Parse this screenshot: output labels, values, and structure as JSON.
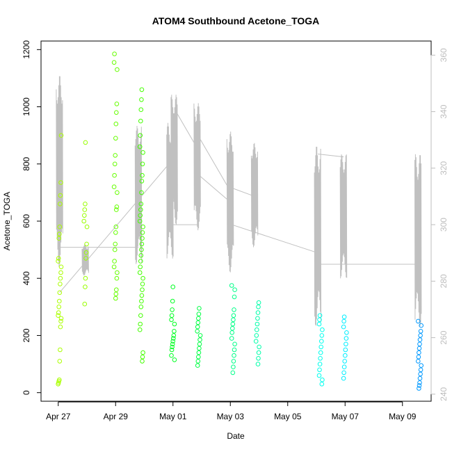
{
  "chart_data": {
    "type": "scatter",
    "title": "ATOM4 Southbound Acetone_TOGA",
    "xlabel": "Date",
    "ylabel": "Acetone_TOGA",
    "x_ticks": [
      "Apr 27",
      "Apr 29",
      "May 01",
      "May 03",
      "May 05",
      "May 07",
      "May 09"
    ],
    "x_tick_days": [
      0,
      2,
      4,
      6,
      8,
      10,
      12
    ],
    "y_ticks": [
      0,
      200,
      400,
      600,
      800,
      1000,
      1200
    ],
    "y2_ticks": [
      240,
      260,
      280,
      300,
      320,
      340,
      360
    ],
    "xlim": [
      -0.6,
      13.0
    ],
    "ylim": [
      -30,
      1230
    ],
    "y2lim": [
      237.5,
      365.0
    ],
    "point_groups": [
      {
        "day": 0.05,
        "color": "#aaff00",
        "values": [
          30,
          35,
          40,
          45,
          110,
          150,
          230,
          250,
          260,
          270,
          280,
          300,
          320,
          350,
          380,
          400,
          420,
          440,
          460,
          470,
          540,
          555,
          580,
          660,
          690,
          735,
          900
        ]
      },
      {
        "day": 0.95,
        "color": "#99ff00",
        "values": [
          310,
          370,
          400,
          470,
          490,
          520,
          580,
          600,
          620,
          640,
          660,
          875
        ]
      },
      {
        "day": 2.0,
        "color": "#66ff00",
        "values": [
          330,
          345,
          360,
          400,
          420,
          440,
          460,
          500,
          520,
          560,
          580,
          640,
          650,
          700,
          720,
          760,
          800,
          830,
          890,
          940,
          980,
          1010,
          1130,
          1155,
          1185
        ]
      },
      {
        "day": 2.9,
        "color": "#44ff00",
        "values": [
          110,
          125,
          140,
          220,
          240,
          270,
          300,
          320,
          340,
          360,
          380,
          400,
          420,
          440,
          460,
          480,
          500,
          520,
          540,
          560,
          580,
          600,
          620,
          640,
          660,
          700,
          740,
          760,
          800,
          840,
          860,
          900,
          950,
          990,
          1025,
          1060
        ]
      },
      {
        "day": 4.0,
        "color": "#00ff22",
        "values": [
          115,
          130,
          150,
          160,
          170,
          180,
          190,
          200,
          215,
          240,
          255,
          270,
          290,
          320,
          370
        ]
      },
      {
        "day": 4.9,
        "color": "#00ff44",
        "values": [
          95,
          110,
          125,
          140,
          155,
          170,
          185,
          200,
          215,
          230,
          245,
          260,
          275,
          295
        ]
      },
      {
        "day": 6.1,
        "color": "#00ff88",
        "values": [
          70,
          90,
          110,
          130,
          150,
          170,
          190,
          210,
          225,
          240,
          255,
          270,
          290,
          335,
          360,
          375
        ]
      },
      {
        "day": 6.95,
        "color": "#00ffaa",
        "values": [
          100,
          120,
          140,
          160,
          180,
          200,
          220,
          240,
          260,
          280,
          300,
          315
        ]
      },
      {
        "day": 9.15,
        "color": "#00ffee",
        "values": [
          30,
          45,
          60,
          80,
          100,
          120,
          140,
          160,
          180,
          200,
          220,
          240,
          255,
          270
        ]
      },
      {
        "day": 10.0,
        "color": "#00eeff",
        "values": [
          50,
          70,
          90,
          110,
          130,
          150,
          170,
          190,
          210,
          230,
          250,
          265
        ]
      },
      {
        "day": 12.6,
        "color": "#0099ff",
        "values": [
          15,
          25,
          35,
          50,
          65,
          80,
          95,
          110,
          125,
          140,
          155,
          170,
          185,
          200,
          215,
          235,
          250
        ]
      }
    ],
    "altitude_series": {
      "color": "#c0c0c0",
      "bursts": [
        {
          "day": 0.05,
          "min": 285,
          "max": 353
        },
        {
          "day": 0.95,
          "min": 282,
          "max": 293
        },
        {
          "day": 2.8,
          "min": 286,
          "max": 335
        },
        {
          "day": 3.9,
          "min": 288,
          "max": 336
        },
        {
          "day": 4.05,
          "min": 300,
          "max": 346
        },
        {
          "day": 4.85,
          "min": 298,
          "max": 343
        },
        {
          "day": 6.0,
          "min": 283,
          "max": 333
        },
        {
          "day": 6.85,
          "min": 292,
          "max": 329
        },
        {
          "day": 9.05,
          "min": 264,
          "max": 328
        },
        {
          "day": 9.95,
          "min": 281,
          "max": 325
        },
        {
          "day": 12.55,
          "min": 264,
          "max": 325
        }
      ],
      "connectors": [
        [
          0.05,
          292,
          0.95,
          292
        ],
        [
          0.05,
          276,
          3.9,
          322
        ],
        [
          0.95,
          292,
          2.8,
          292
        ],
        [
          3.9,
          300,
          4.85,
          300
        ],
        [
          4.05,
          341,
          4.85,
          327
        ],
        [
          4.85,
          318,
          6.0,
          308
        ],
        [
          4.85,
          332,
          6.05,
          311
        ],
        [
          6.05,
          300,
          9.05,
          290
        ],
        [
          6.05,
          313,
          6.85,
          310
        ],
        [
          9.05,
          325,
          9.95,
          324
        ],
        [
          9.1,
          286,
          12.5,
          286
        ]
      ]
    }
  }
}
